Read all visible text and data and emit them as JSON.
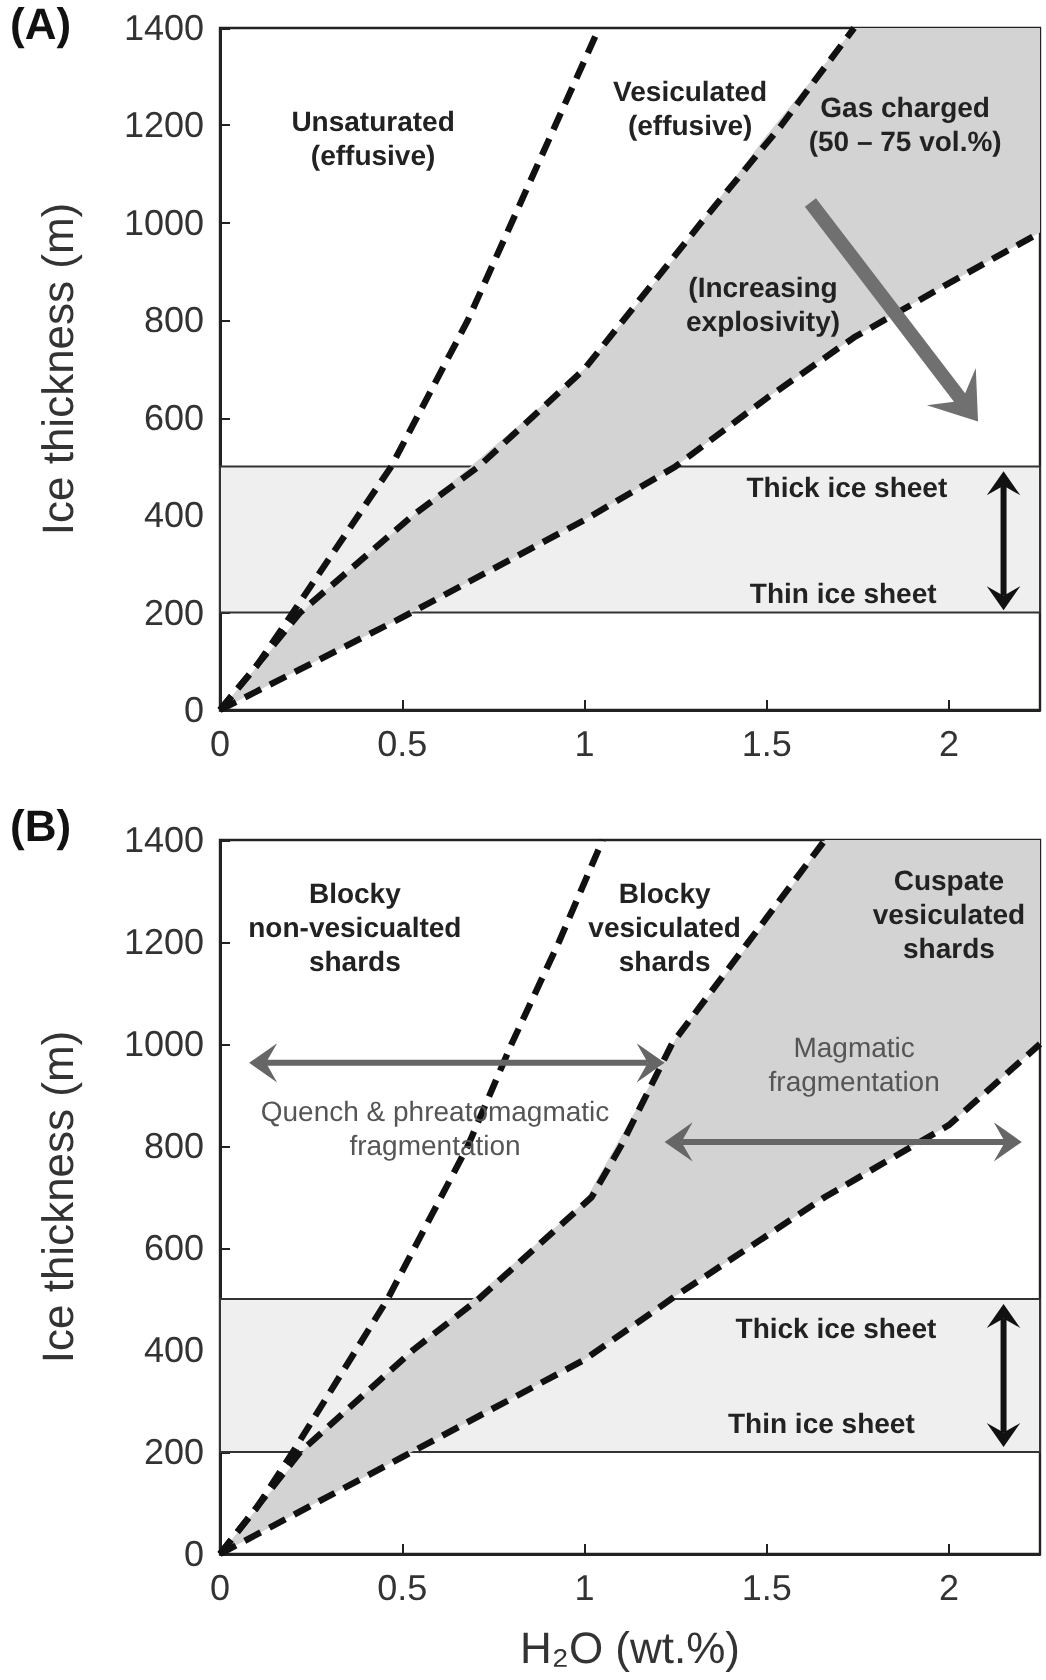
{
  "chart_data": [
    {
      "type": "line",
      "title": "(A)",
      "ylabel": "Ice thickness (m)",
      "xlim": [
        0,
        2.25
      ],
      "xticks": [
        0,
        0.5,
        1,
        1.5,
        2
      ],
      "ylim": [
        0,
        1400
      ],
      "yticks": [
        0,
        200,
        400,
        600,
        800,
        1000,
        1200,
        1400
      ],
      "grid": false,
      "marker": "none",
      "line_style": "dashed",
      "series": [
        {
          "color": "#111111",
          "x": [
            0,
            0.1,
            0.2,
            0.47,
            0.68,
            0.8,
            0.92,
            1.04
          ],
          "values": [
            0,
            90,
            200,
            500,
            800,
            1000,
            1200,
            1400
          ]
        },
        {
          "color": "#111111",
          "x": [
            0,
            0.22,
            0.53,
            0.71,
            1.0,
            1.32,
            1.54,
            1.74
          ],
          "values": [
            0,
            200,
            400,
            500,
            700,
            1000,
            1200,
            1400
          ]
        },
        {
          "color": "#111111",
          "x": [
            0,
            0.25,
            0.5,
            1,
            1.25,
            1.5,
            1.74,
            2,
            2.25
          ],
          "values": [
            0,
            95,
            190,
            390,
            500,
            640,
            765,
            876,
            980
          ],
          "lower": [
            0,
            95,
            190,
            390,
            500,
            640,
            765,
            876,
            980
          ],
          "upper": [
            0,
            220,
            380,
            700,
            930,
            1180,
            1400,
            1400,
            1400
          ]
        }
      ],
      "bands": [
        {
          "axis": "y",
          "from": 200,
          "to": 500,
          "color": "#efefef"
        }
      ],
      "annotations": [
        "Unsaturated\n(effusive)",
        "Vesiculated\n(effusive)",
        "Gas charged\n(50 – 75 vol.%)",
        "(Increasing\nexplosivity)",
        "Thick ice sheet",
        "Thin ice sheet"
      ]
    },
    {
      "type": "line",
      "title": "(B)",
      "xlabel": "H₂O (wt.%)",
      "ylabel": "Ice thickness (m)",
      "xlim": [
        0,
        2.25
      ],
      "xticks": [
        0,
        0.5,
        1,
        1.5,
        2
      ],
      "ylim": [
        0,
        1400
      ],
      "yticks": [
        0,
        200,
        400,
        600,
        800,
        1000,
        1200,
        1400
      ],
      "grid": false,
      "marker": "none",
      "line_style": "dashed",
      "series": [
        {
          "color": "#111111",
          "x": [
            0,
            0.1,
            0.2,
            0.46,
            0.68,
            0.8,
            0.93,
            1.05
          ],
          "values": [
            0,
            90,
            200,
            500,
            800,
            1000,
            1200,
            1400
          ]
        },
        {
          "color": "#111111",
          "x": [
            0,
            0.22,
            0.53,
            0.71,
            1.02,
            1.1,
            1.24,
            1.45,
            1.66
          ],
          "values": [
            0,
            200,
            400,
            500,
            700,
            800,
            1000,
            1200,
            1400
          ]
        },
        {
          "color": "#111111",
          "x": [
            0,
            0.25,
            0.5,
            1,
            1.25,
            1.5,
            1.66,
            2,
            2.25
          ],
          "values": [
            0,
            95,
            190,
            381,
            506,
            624,
            700,
            841,
            1000
          ],
          "lower": [
            0,
            95,
            190,
            381,
            506,
            624,
            700,
            841,
            1000
          ],
          "upper": [
            0,
            220,
            380,
            690,
            1010,
            1240,
            1400,
            1400,
            1400
          ]
        }
      ],
      "bands": [
        {
          "axis": "y",
          "from": 200,
          "to": 500,
          "color": "#efefef"
        }
      ],
      "annotations": [
        "Blocky\nnon-vesicualted\nshards",
        "Blocky\nvesiculated\nshards",
        "Cuspate\nvesiculated\nshards",
        "Quench & phreatomagmatic\nfragmentation",
        "Magmatic\nfragmentation",
        "Thick ice sheet",
        "Thin ice sheet"
      ]
    }
  ]
}
